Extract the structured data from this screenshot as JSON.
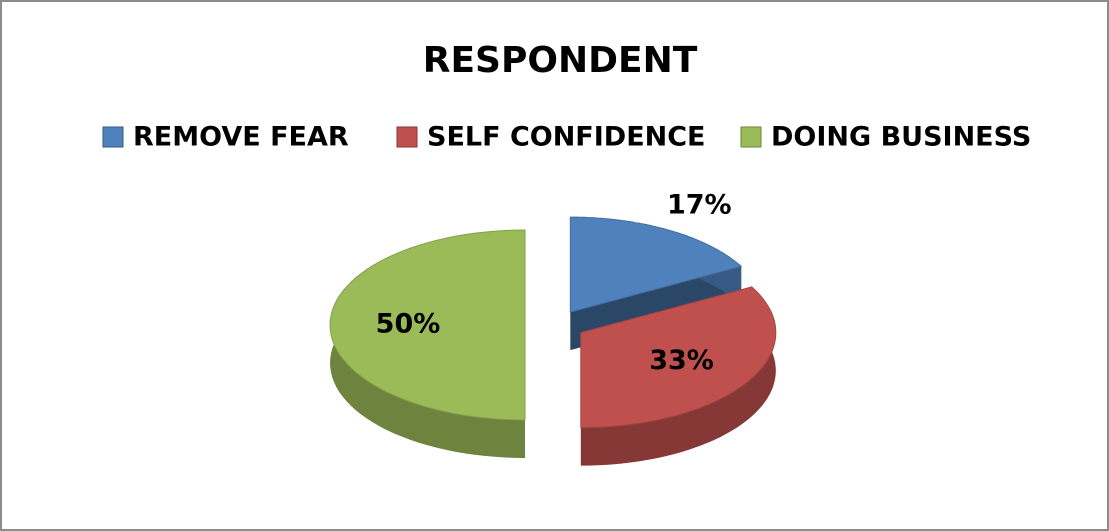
{
  "chart_data": {
    "type": "pie",
    "title": "RESPONDENT",
    "categories": [
      "REMOVE FEAR",
      "SELF CONFIDENCE",
      "DOING BUSINESS"
    ],
    "values": [
      17,
      33,
      50
    ],
    "value_labels": [
      "17%",
      "33%",
      "50%"
    ],
    "colors": [
      "#4f81bd",
      "#c0504d",
      "#9bbb59"
    ],
    "legend": "top"
  }
}
